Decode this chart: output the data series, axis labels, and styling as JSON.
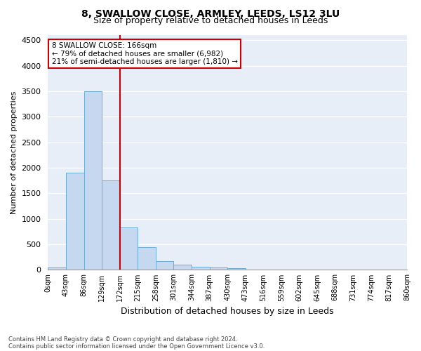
{
  "title1": "8, SWALLOW CLOSE, ARMLEY, LEEDS, LS12 3LU",
  "title2": "Size of property relative to detached houses in Leeds",
  "xlabel": "Distribution of detached houses by size in Leeds",
  "ylabel": "Number of detached properties",
  "bar_values": [
    50,
    1900,
    3500,
    1750,
    825,
    450,
    170,
    100,
    60,
    45,
    35,
    0,
    0,
    0,
    0,
    0,
    0,
    0,
    0,
    0
  ],
  "bar_labels": [
    "0sqm",
    "43sqm",
    "86sqm",
    "129sqm",
    "172sqm",
    "215sqm",
    "258sqm",
    "301sqm",
    "344sqm",
    "387sqm",
    "430sqm",
    "473sqm",
    "516sqm",
    "559sqm",
    "602sqm",
    "645sqm",
    "688sqm",
    "731sqm",
    "774sqm",
    "817sqm",
    "860sqm"
  ],
  "bar_color": "#c5d8f0",
  "bar_edgecolor": "#6aaed6",
  "highlight_color": "#cc0000",
  "ylim": [
    0,
    4600
  ],
  "yticks": [
    0,
    500,
    1000,
    1500,
    2000,
    2500,
    3000,
    3500,
    4000,
    4500
  ],
  "annotation_title": "8 SWALLOW CLOSE: 166sqm",
  "annotation_line1": "← 79% of detached houses are smaller (6,982)",
  "annotation_line2": "21% of semi-detached houses are larger (1,810) →",
  "annotation_box_color": "#cc0000",
  "footer1": "Contains HM Land Registry data © Crown copyright and database right 2024.",
  "footer2": "Contains public sector information licensed under the Open Government Licence v3.0.",
  "plot_bg_color": "#e8eef8",
  "title1_fontsize": 10,
  "title2_fontsize": 9,
  "n_bars": 20
}
